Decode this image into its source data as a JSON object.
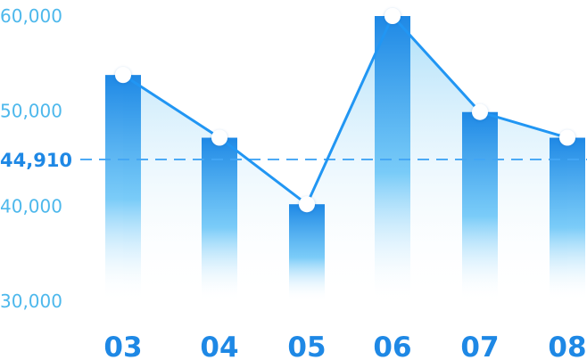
{
  "chart_data": {
    "type": "bar",
    "overlay": "line",
    "categories": [
      "03",
      "04",
      "05",
      "06",
      "07",
      "08"
    ],
    "values": [
      53800,
      47200,
      40200,
      60000,
      49900,
      47200
    ],
    "yticks": [
      "60,000",
      "50,000",
      "40,000",
      "30,000"
    ],
    "ytick_values": [
      60000,
      50000,
      40000,
      30000
    ],
    "ylim": [
      30000,
      60000
    ],
    "reference_line": {
      "value": 44910,
      "label": "44,910"
    },
    "title": "",
    "xlabel": "",
    "ylabel": "",
    "grid": false,
    "colors": {
      "bar_top": "#1e88e5",
      "bar_bottom": "#ffffff",
      "line": "#2196f3",
      "area_top": "#8fd3f7",
      "reference": "#42a5f5",
      "ytick": "#4db8ec",
      "xtick": "#1e88e5",
      "marker_fill": "#ffffff"
    }
  }
}
